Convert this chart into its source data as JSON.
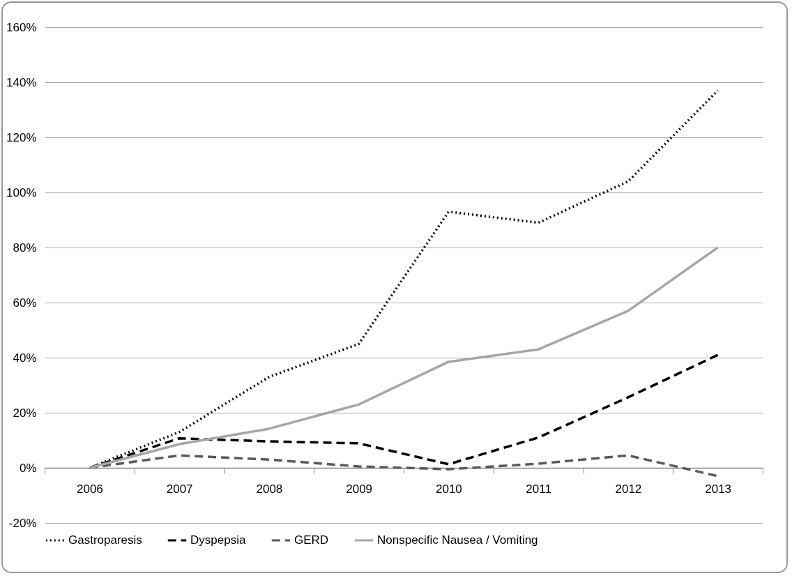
{
  "chart_data": {
    "type": "line",
    "categories": [
      "2006",
      "2007",
      "2008",
      "2009",
      "2010",
      "2011",
      "2012",
      "2013"
    ],
    "series": [
      {
        "name": "Gastroparesis",
        "color": "#000000",
        "line_style": "dotted",
        "values": [
          0,
          13,
          33,
          45,
          93,
          89,
          104,
          137
        ]
      },
      {
        "name": "Dyspepsia",
        "color": "#000000",
        "line_style": "dashed",
        "values": [
          0,
          10.7,
          9.6,
          8.9,
          1.3,
          11,
          25.6,
          41
        ]
      },
      {
        "name": "GERD",
        "color": "#595959",
        "line_style": "dashed",
        "values": [
          0,
          4.5,
          3,
          0.5,
          -0.5,
          1.5,
          4.5,
          -3
        ]
      },
      {
        "name": "Nonspecific Nausea / Vomiting",
        "color": "#a6a6a6",
        "line_style": "solid",
        "values": [
          0,
          8.6,
          14.2,
          23,
          38.5,
          43,
          57,
          80
        ]
      }
    ],
    "ylim": [
      -20,
      160
    ],
    "yticks": [
      {
        "value": -20,
        "label": "-20%"
      },
      {
        "value": 0,
        "label": "0%"
      },
      {
        "value": 20,
        "label": "20%"
      },
      {
        "value": 40,
        "label": "40%"
      },
      {
        "value": 60,
        "label": "60%"
      },
      {
        "value": 80,
        "label": "80%"
      },
      {
        "value": 100,
        "label": "100%"
      },
      {
        "value": 120,
        "label": "120%"
      },
      {
        "value": 140,
        "label": "140%"
      },
      {
        "value": 160,
        "label": "160%"
      }
    ],
    "grid": "y",
    "legend": "bottom",
    "marker": "none"
  }
}
